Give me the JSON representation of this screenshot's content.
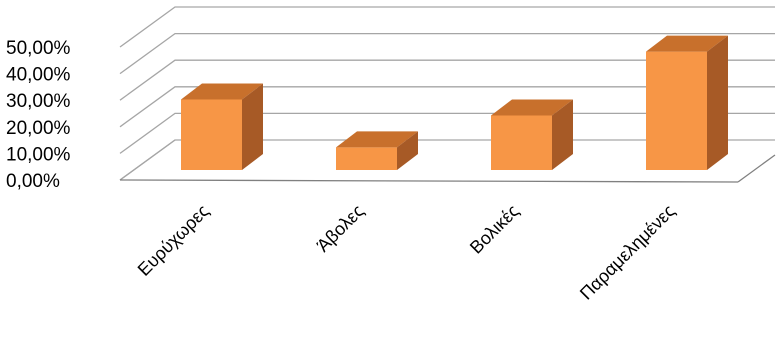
{
  "chart_data": {
    "type": "bar",
    "style": "3d-column",
    "categories": [
      "Ευρύχωρες",
      "Άβολες",
      "Βολικές",
      "Παραμελημένες"
    ],
    "values": [
      26.5,
      8.5,
      20.5,
      44.5
    ],
    "ylim": [
      0,
      50
    ],
    "yticks": [
      "0,00%",
      "10,00%",
      "20,00%",
      "30,00%",
      "40,00%",
      "50,00%"
    ],
    "grid": true,
    "legend": "none",
    "colors": {
      "front": "#F79646",
      "top": "#C8702C",
      "side": "#A75A26",
      "grid": "#A6A6A6",
      "floor": "#808080"
    }
  }
}
